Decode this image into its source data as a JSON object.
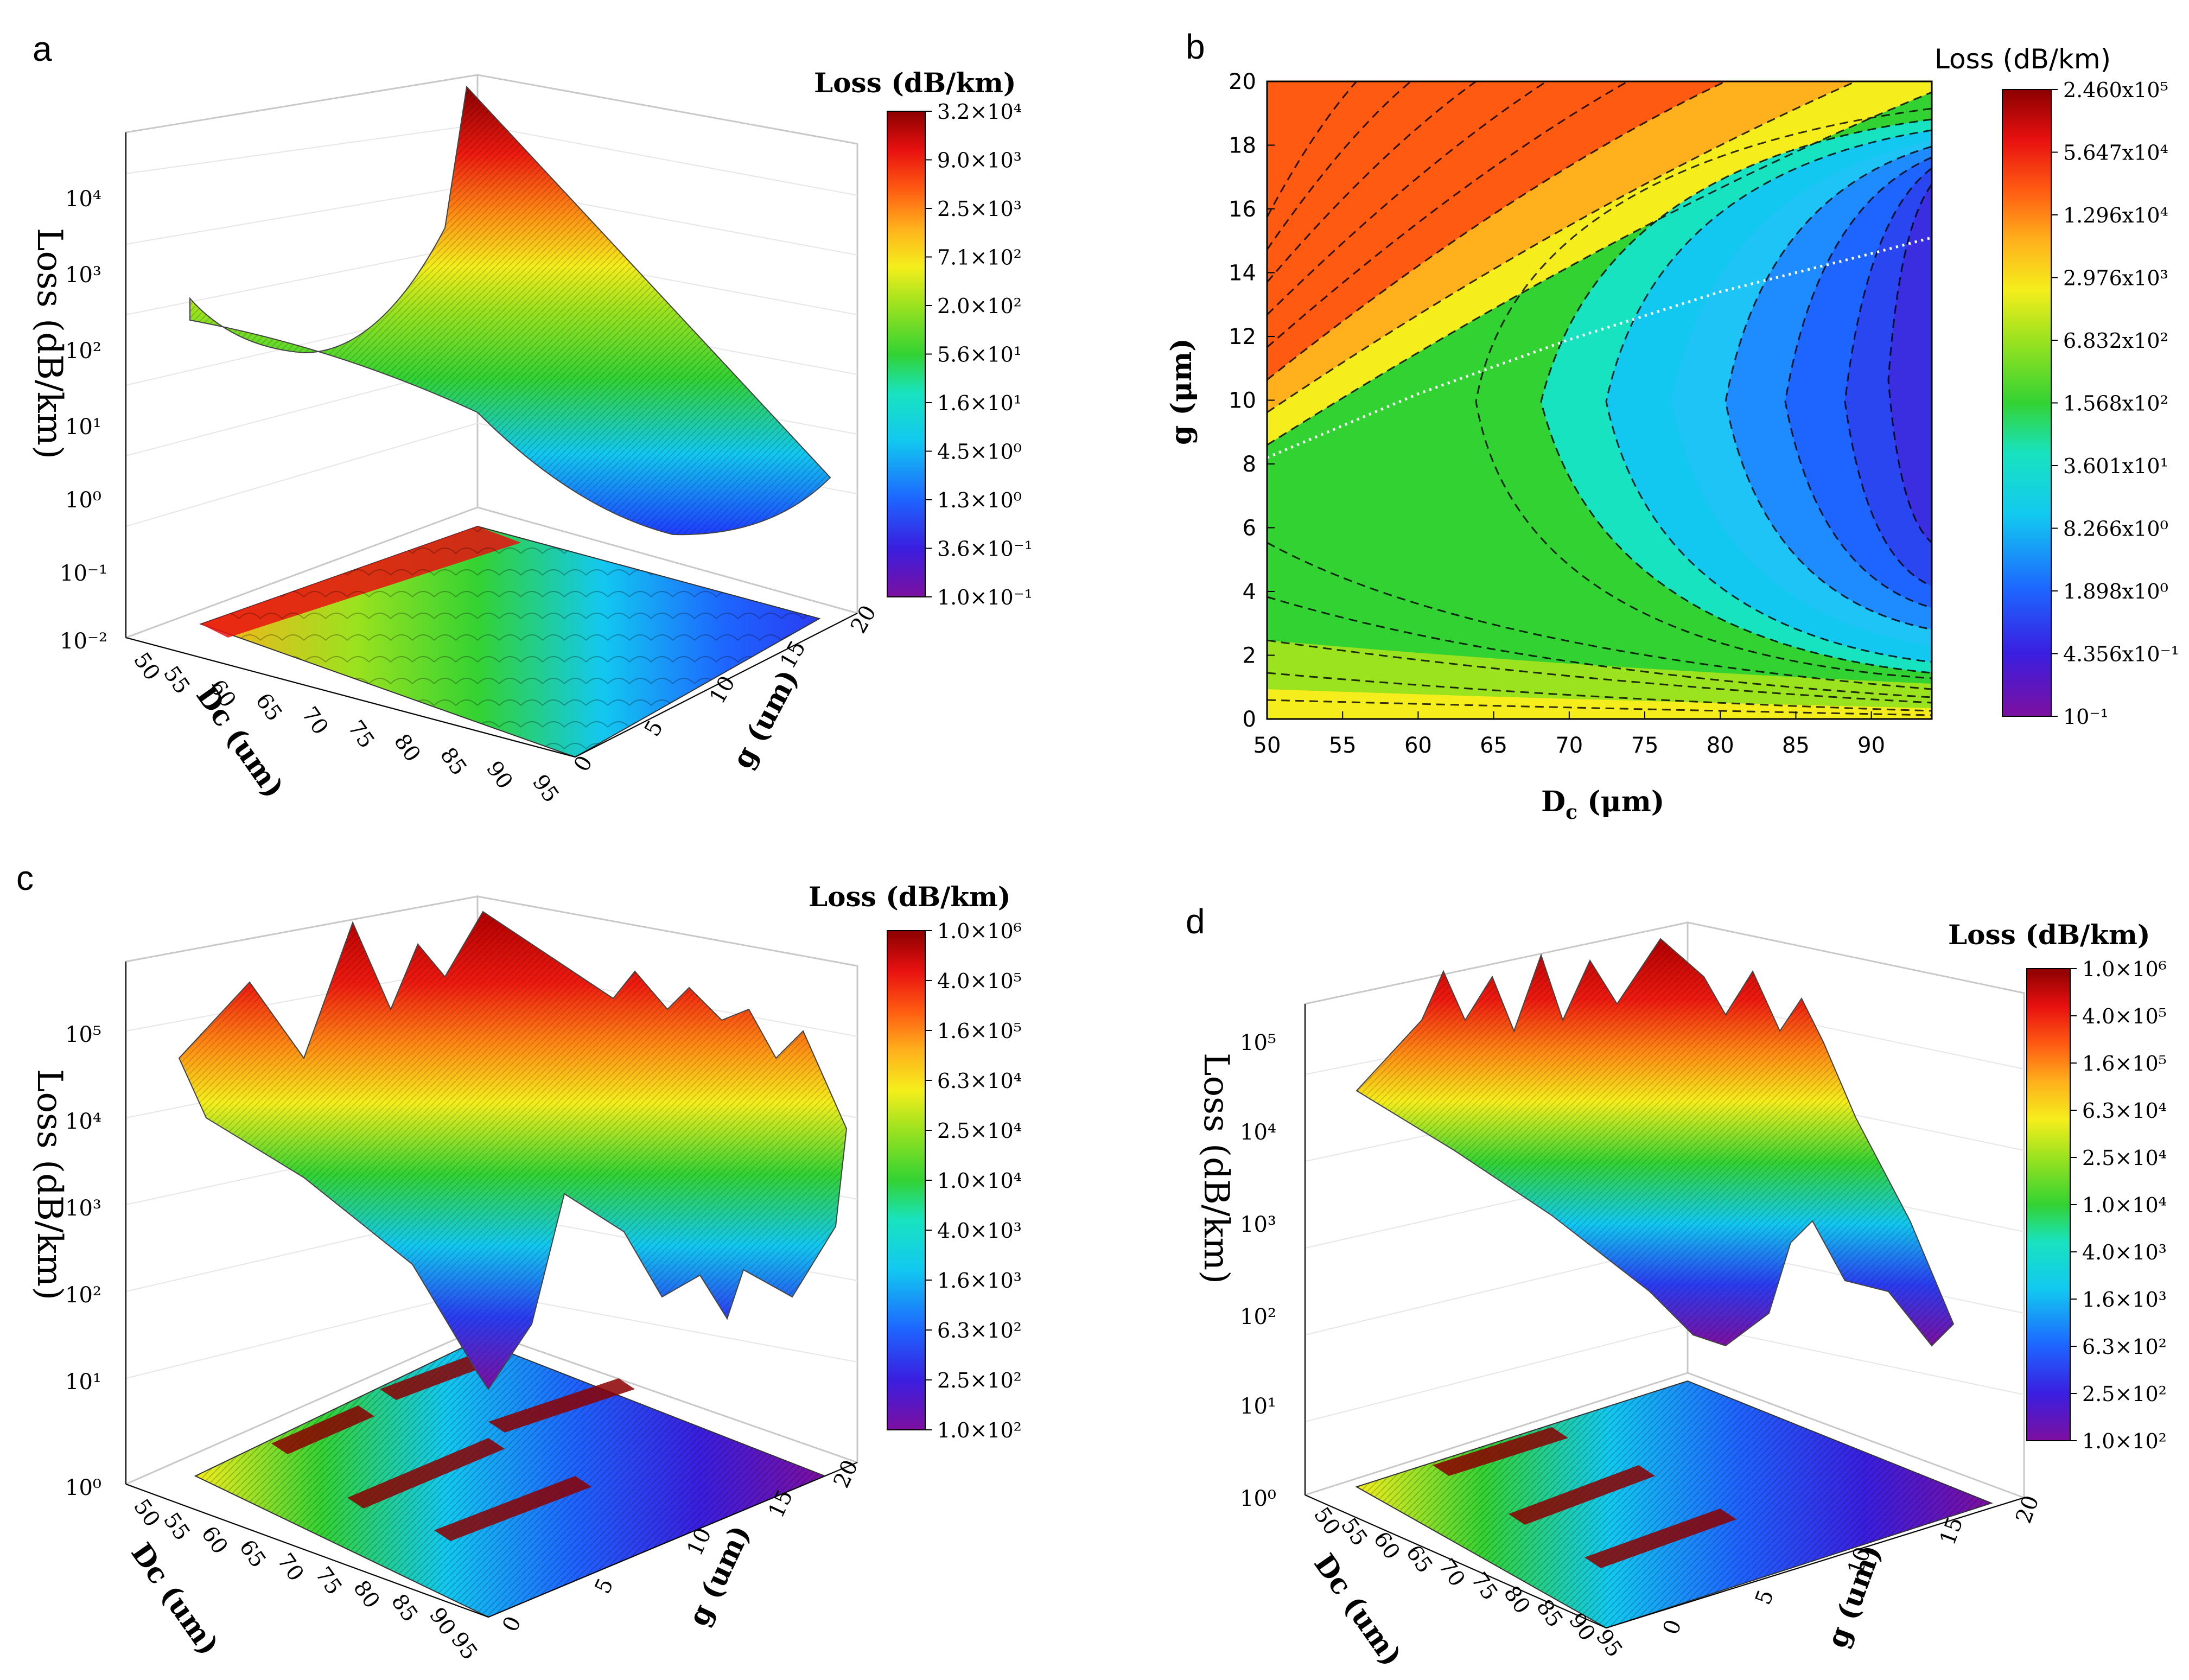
{
  "chart_data": [
    {
      "panel": "a",
      "type": "surface3d",
      "xlabel": "Dc (um)",
      "ylabel": "g (um)",
      "zlabel": "Loss (dB/km)",
      "x_ticks": [
        "50",
        "55",
        "60",
        "65",
        "70",
        "75",
        "80",
        "85",
        "90",
        "95"
      ],
      "y_ticks": [
        "0",
        "5",
        "10",
        "15",
        "20"
      ],
      "z_ticks": [
        "10⁻²",
        "10⁻¹",
        "10⁰",
        "10¹",
        "10²",
        "10³",
        "10⁴"
      ],
      "z_scale": "log",
      "colorbar": {
        "title": "Loss (dB/km)",
        "ticks": [
          "3.2×10⁴",
          "9.0×10³",
          "2.5×10³",
          "7.1×10²",
          "2.0×10²",
          "5.6×10¹",
          "1.6×10¹",
          "4.5×10⁰",
          "1.3×10⁰",
          "3.6×10⁻¹",
          "1.0×10⁻¹"
        ]
      }
    },
    {
      "panel": "b",
      "type": "contour",
      "xlabel": "D",
      "xlabel_sub": "c",
      "xlabel_unit": " (μm)",
      "ylabel": "g (μm)",
      "xlim": [
        50,
        94
      ],
      "ylim": [
        0,
        20
      ],
      "x_ticks": [
        50,
        55,
        60,
        65,
        70,
        75,
        80,
        85,
        90
      ],
      "y_ticks": [
        0,
        2,
        4,
        6,
        8,
        10,
        12,
        14,
        16,
        18,
        20
      ],
      "optimal_line": {
        "x": [
          50,
          60,
          70,
          80,
          90,
          94
        ],
        "y": [
          8.2,
          10.2,
          11.9,
          13.4,
          14.6,
          15.1
        ]
      },
      "colorbar": {
        "title": "Loss (dB/km)",
        "ticks": [
          "2.460x10⁵",
          "5.647x10⁴",
          "1.296x10⁴",
          "2.976x10³",
          "6.832x10²",
          "1.568x10²",
          "3.601x10¹",
          "8.266x10⁰",
          "1.898x10⁰",
          "4.356x10⁻¹",
          "10⁻¹"
        ]
      }
    },
    {
      "panel": "c",
      "type": "surface3d",
      "xlabel": "Dc (um)",
      "ylabel": "g (um)",
      "zlabel": "Loss (dB/km)",
      "x_ticks": [
        "50",
        "55",
        "60",
        "65",
        "70",
        "75",
        "80",
        "85",
        "90",
        "95"
      ],
      "y_ticks": [
        "0",
        "5",
        "10",
        "15",
        "20"
      ],
      "z_ticks": [
        "10⁰",
        "10¹",
        "10²",
        "10³",
        "10⁴",
        "10⁵"
      ],
      "z_scale": "log",
      "colorbar": {
        "title": "Loss (dB/km)",
        "ticks": [
          "1.0×10⁶",
          "4.0×10⁵",
          "1.6×10⁵",
          "6.3×10⁴",
          "2.5×10⁴",
          "1.0×10⁴",
          "4.0×10³",
          "1.6×10³",
          "6.3×10²",
          "2.5×10²",
          "1.0×10²"
        ]
      }
    },
    {
      "panel": "d",
      "type": "surface3d",
      "xlabel": "Dc (um)",
      "ylabel": "g (um)",
      "zlabel": "Loss (dB/km)",
      "x_ticks": [
        "50",
        "55",
        "60",
        "65",
        "70",
        "75",
        "80",
        "85",
        "90",
        "95"
      ],
      "y_ticks": [
        "0",
        "5",
        "10",
        "15",
        "20"
      ],
      "z_ticks": [
        "10⁰",
        "10¹",
        "10²",
        "10³",
        "10⁴",
        "10⁵"
      ],
      "z_scale": "log",
      "colorbar": {
        "title": "Loss (dB/km)",
        "ticks": [
          "1.0×10⁶",
          "4.0×10⁵",
          "1.6×10⁵",
          "6.3×10⁴",
          "2.5×10⁴",
          "1.0×10⁴",
          "4.0×10³",
          "1.6×10³",
          "6.3×10²",
          "2.5×10²",
          "1.0×10²"
        ]
      }
    }
  ],
  "colors": {
    "rainbow": [
      "#7d0fa0",
      "#3a1ee0",
      "#1e64ff",
      "#12c8f0",
      "#18e3c0",
      "#33d233",
      "#9be21f",
      "#f5ee1c",
      "#ffb01c",
      "#ff5a12",
      "#e81010",
      "#8b0000"
    ]
  },
  "icons": {
    "surface": "3d-surface-plot-icon",
    "contour": "contour-map-icon"
  }
}
